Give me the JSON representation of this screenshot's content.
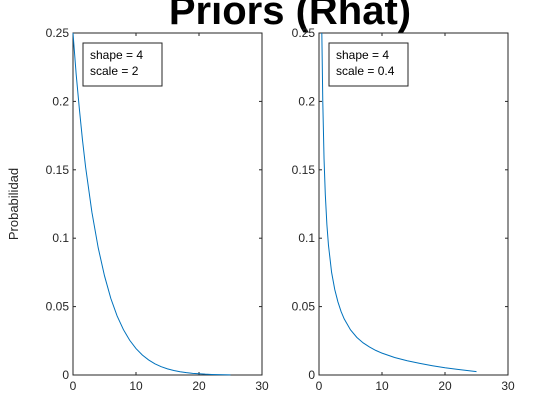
{
  "figure": {
    "title": "Priors (Rhat)",
    "ylabel": "Probabilidad"
  },
  "chart_data": [
    {
      "type": "line",
      "title": "",
      "xlabel": "",
      "ylabel": "Probabilidad",
      "xlim": [
        0,
        30
      ],
      "ylim": [
        0,
        0.25
      ],
      "xticks": [
        "0",
        "10",
        "20",
        "30"
      ],
      "yticks": [
        "0",
        "0.05",
        "0.1",
        "0.15",
        "0.2",
        "0.25"
      ],
      "legend_position": "top-left",
      "legend_lines": [
        "shape = 4",
        "scale = 2"
      ],
      "line_color": "#0072bd",
      "series": [
        {
          "x": [
            0,
            0.5,
            1,
            1.5,
            2,
            3,
            4,
            5,
            6,
            7,
            8,
            9,
            10,
            11,
            12,
            13,
            14,
            15,
            16,
            17,
            18,
            19,
            20,
            21,
            22,
            23,
            24,
            25
          ],
          "values": [
            0.25,
            0.22,
            0.195,
            0.172,
            0.152,
            0.119,
            0.093,
            0.0725,
            0.056,
            0.0432,
            0.0332,
            0.0254,
            0.0193,
            0.0146,
            0.011,
            0.0082,
            0.0061,
            0.0045,
            0.0033,
            0.0024,
            0.0017,
            0.0012,
            0.0009,
            0.0006,
            0.0004,
            0.0003,
            0.0002,
            0.0001
          ]
        }
      ]
    },
    {
      "type": "line",
      "title": "",
      "xlabel": "",
      "ylabel": "",
      "xlim": [
        0,
        30
      ],
      "ylim": [
        0,
        0.25
      ],
      "xticks": [
        "0",
        "10",
        "20",
        "30"
      ],
      "yticks": [
        "0",
        "0.05",
        "0.1",
        "0.15",
        "0.2",
        "0.25"
      ],
      "legend_position": "top-left",
      "legend_lines": [
        "shape = 4",
        "scale = 0.4"
      ],
      "line_color": "#0072bd",
      "series": [
        {
          "x": [
            0.45,
            0.6,
            0.8,
            1,
            1.25,
            1.5,
            2,
            2.5,
            3,
            3.5,
            4,
            5,
            6,
            7,
            8,
            9,
            10,
            12,
            14,
            16,
            18,
            20,
            22,
            25
          ],
          "values": [
            0.25,
            0.2,
            0.158,
            0.132,
            0.11,
            0.095,
            0.075,
            0.0625,
            0.0535,
            0.0465,
            0.041,
            0.033,
            0.0275,
            0.0235,
            0.0205,
            0.018,
            0.016,
            0.0128,
            0.0104,
            0.0085,
            0.0068,
            0.0053,
            0.0041,
            0.0025
          ]
        }
      ]
    }
  ]
}
